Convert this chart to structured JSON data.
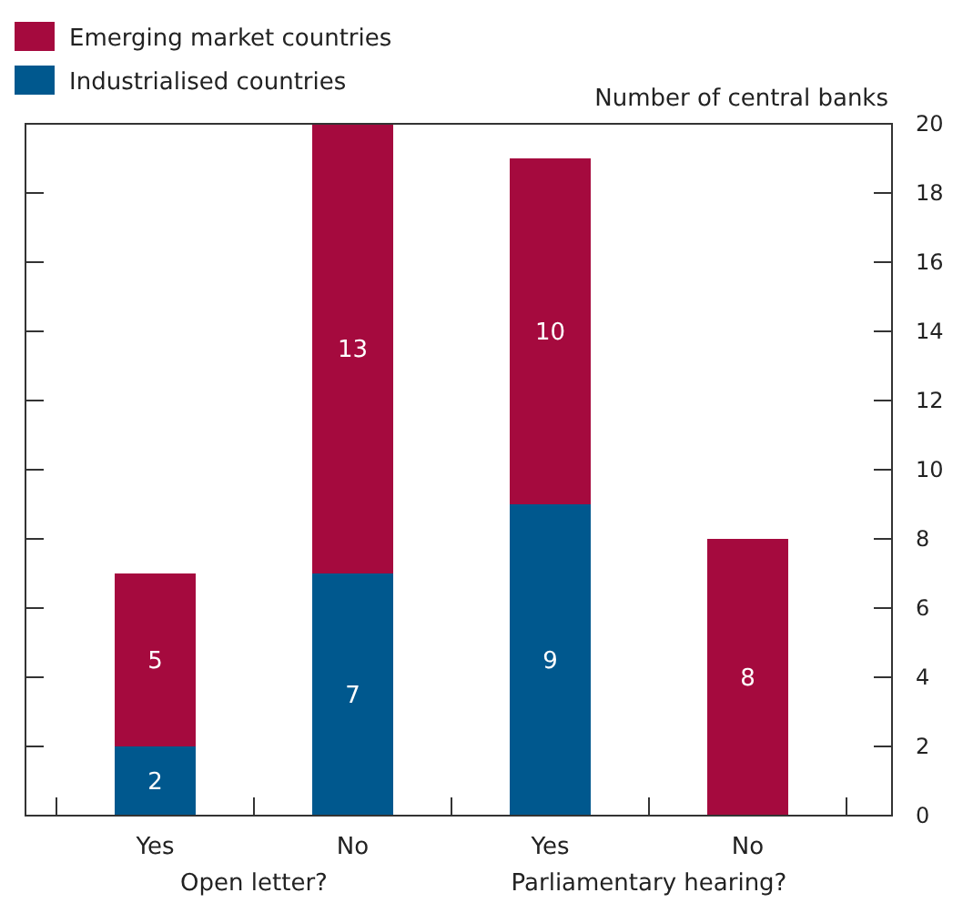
{
  "chart_data": {
    "type": "bar",
    "stacked": true,
    "categories": [
      "Yes",
      "No",
      "Yes",
      "No"
    ],
    "series": [
      {
        "name": "Industrialised countries",
        "color": "#00588e",
        "values": [
          2,
          7,
          9,
          0
        ],
        "value_labels": [
          "2",
          "7",
          "9",
          null
        ]
      },
      {
        "name": "Emerging market countries",
        "color": "#a50a3e",
        "values": [
          5,
          13,
          10,
          8
        ],
        "value_labels": [
          "5",
          "13",
          "10",
          "8"
        ]
      }
    ],
    "ylabel": "Number of central banks",
    "ylim": [
      0,
      20
    ],
    "yticks": [
      0,
      2,
      4,
      6,
      8,
      10,
      12,
      14,
      16,
      18,
      20
    ],
    "annotations": [
      "Open letter?",
      "Parliamentary hearing?"
    ],
    "legend": "top left",
    "grid": false
  }
}
